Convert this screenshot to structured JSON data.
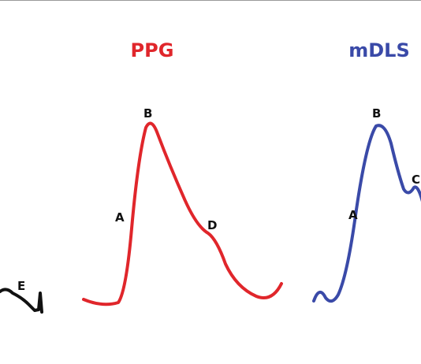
{
  "waveforms": {
    "left_fragment": {
      "points": [
        "E"
      ]
    },
    "ppg": {
      "title": "PPG",
      "points": [
        "A",
        "B",
        "D"
      ]
    },
    "mdls": {
      "title": "mDLS",
      "points": [
        "A",
        "B",
        "C"
      ]
    }
  }
}
